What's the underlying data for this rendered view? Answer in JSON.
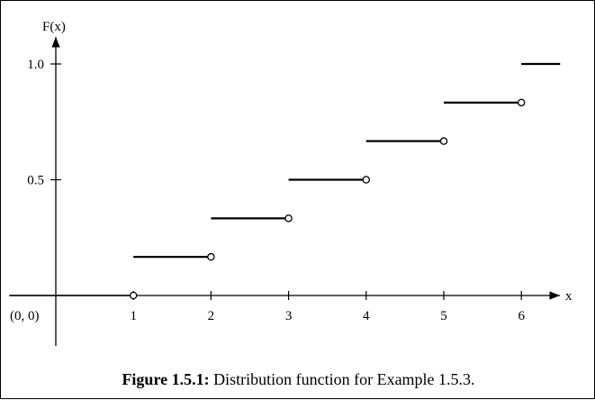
{
  "chart_data": {
    "type": "line",
    "subtype": "step",
    "ylabel": "F(x)",
    "xlabel": "x",
    "origin_label": "(0, 0)",
    "x_ticks": [
      1,
      2,
      3,
      4,
      5,
      6
    ],
    "x_tick_labels": [
      "1",
      "2",
      "3",
      "4",
      "5",
      "6"
    ],
    "y_ticks": [
      0.5,
      1.0
    ],
    "y_tick_labels": [
      "0.5",
      "1.0"
    ],
    "xlim": [
      -0.6,
      6.6
    ],
    "ylim": [
      -0.2,
      1.05
    ],
    "grid": false,
    "legend": "none",
    "segments": [
      {
        "x_start": -0.6,
        "x_end": 1,
        "y": 0,
        "end": "open"
      },
      {
        "x_start": 1,
        "x_end": 2,
        "y": 0.1667,
        "end": "open"
      },
      {
        "x_start": 2,
        "x_end": 3,
        "y": 0.3333,
        "end": "open"
      },
      {
        "x_start": 3,
        "x_end": 4,
        "y": 0.5,
        "end": "open"
      },
      {
        "x_start": 4,
        "x_end": 5,
        "y": 0.6667,
        "end": "open"
      },
      {
        "x_start": 5,
        "x_end": 6,
        "y": 0.8333,
        "end": "open"
      },
      {
        "x_start": 6,
        "x_end": 6.5,
        "y": 1.0,
        "end": "none"
      }
    ],
    "line_color": "#000000"
  },
  "caption": {
    "label": "Figure 1.5.1:",
    "text": " Distribution function for Example 1.5.3."
  }
}
